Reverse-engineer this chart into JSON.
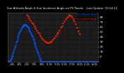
{
  "title": "Sun Altitude Angle & Sun Incidence Angle on PV Panels",
  "date_label": "Last Update: 13:24:11",
  "bg_color": "#000000",
  "plot_bg": "#1a1a1a",
  "grid_color": "#555555",
  "blue_color": "#0055ff",
  "red_color": "#ff2200",
  "legend_blue": "Sun Altitude Angle",
  "legend_red": "Sun Incidence Angle",
  "text_color": "#ffffff",
  "ylim": [
    -10,
    90
  ],
  "yticks": [
    0,
    10,
    20,
    30,
    40,
    50,
    60,
    70,
    80
  ],
  "xlim": [
    0,
    288
  ],
  "xtick_labels": [
    "1:00",
    "3:00",
    "5:00",
    "7:00",
    "9:00",
    "11:00",
    "13:00",
    "15:00",
    "17:00",
    "19:00",
    "21:00",
    "23:00"
  ],
  "xtick_pos": [
    12,
    36,
    60,
    84,
    108,
    132,
    156,
    180,
    204,
    228,
    252,
    276
  ],
  "sun_alt_x": [
    0,
    2,
    4,
    6,
    8,
    10,
    12,
    14,
    16,
    18,
    20,
    22,
    24,
    26,
    28,
    30,
    32,
    34,
    36,
    38,
    40,
    42,
    44,
    46,
    48,
    50,
    52,
    54,
    56,
    58,
    60,
    62,
    64,
    66,
    68,
    70,
    72,
    74,
    76,
    78,
    80,
    82,
    84,
    86,
    88,
    90,
    92,
    94,
    96,
    98,
    100,
    102,
    104,
    106,
    108,
    110,
    112,
    114,
    116,
    118,
    120,
    122,
    124,
    126,
    128,
    130,
    132,
    134,
    136,
    138,
    140,
    142,
    144,
    146,
    148,
    150,
    152,
    154,
    156,
    158,
    160,
    162,
    164,
    166,
    168,
    170,
    172,
    174,
    176,
    178,
    180,
    182,
    184,
    186,
    188,
    190,
    192,
    194,
    196,
    198,
    200,
    202,
    204,
    206,
    208,
    210,
    212,
    214,
    216,
    218,
    220,
    222,
    224,
    226,
    228,
    230,
    232,
    234,
    236,
    238,
    240,
    242,
    244,
    246,
    248,
    250,
    252,
    254,
    256,
    258,
    260,
    262,
    264,
    266,
    268,
    270,
    272,
    274,
    276,
    278,
    280,
    282,
    284,
    286,
    288
  ],
  "sun_alt_y": [
    -10,
    -10,
    -9,
    -8,
    -6,
    -3,
    0,
    3,
    7,
    11,
    15,
    20,
    24,
    29,
    33,
    37,
    41,
    45,
    48,
    51,
    54,
    57,
    59,
    61,
    63,
    64,
    65,
    65,
    65,
    64,
    63,
    62,
    60,
    58,
    55,
    53,
    50,
    47,
    44,
    41,
    37,
    34,
    30,
    26,
    22,
    18,
    14,
    10,
    6,
    2,
    -2,
    -5,
    -8,
    -10,
    -10,
    -10,
    -10,
    -10,
    -10,
    -10,
    -10,
    -10,
    -10,
    -10,
    -10,
    -10,
    -10,
    -10,
    -10,
    -10,
    -10,
    -10,
    -10,
    -10,
    -10,
    -10,
    -10,
    -10,
    -10,
    -10,
    -10,
    -10,
    -10,
    -10,
    -10,
    -10,
    -10,
    -10,
    -10,
    -10,
    -10,
    -10,
    -10,
    -10,
    -10,
    -10,
    -10,
    -10,
    -10,
    -10,
    -10,
    -10,
    -10,
    -10,
    -10,
    -10,
    -10,
    -10,
    -10,
    -10,
    -10,
    -10,
    -10,
    -10,
    -10,
    -10,
    -10,
    -10,
    -10,
    -10,
    -10,
    -10,
    -10,
    -10,
    -10,
    -10,
    -10,
    -10,
    -10,
    -10,
    -10,
    -10,
    -10,
    -10,
    -10,
    -10,
    -10,
    -10,
    -10,
    -10,
    -10,
    -10,
    -10,
    -10,
    -10
  ],
  "sun_inc_x": [
    60,
    64,
    68,
    72,
    76,
    80,
    84,
    88,
    92,
    96,
    100,
    104,
    108,
    112,
    116,
    120,
    124,
    128,
    132,
    136,
    140,
    144,
    148,
    152,
    156,
    160,
    164,
    168,
    172,
    176,
    180,
    184,
    188,
    192,
    196,
    200,
    204,
    208,
    212,
    216,
    220,
    224,
    228
  ],
  "sun_inc_y": [
    85,
    82,
    78,
    74,
    70,
    66,
    62,
    58,
    54,
    50,
    46,
    42,
    38,
    35,
    32,
    30,
    29,
    28,
    29,
    30,
    32,
    35,
    38,
    42,
    46,
    50,
    54,
    59,
    63,
    68,
    72,
    76,
    80,
    83,
    85,
    84,
    81,
    77,
    72,
    66,
    60,
    53,
    46
  ]
}
